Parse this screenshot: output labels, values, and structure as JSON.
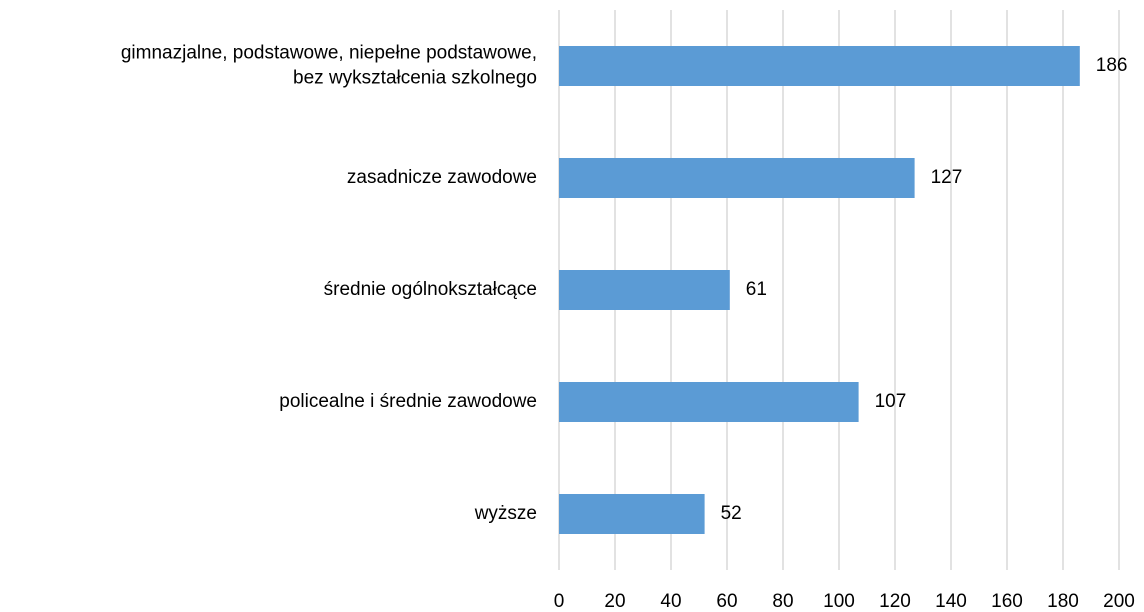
{
  "chart_data": {
    "type": "bar",
    "orientation": "horizontal",
    "categories": [
      "gimnazjalne, podstawowe, niepełne podstawowe,\nbez wykształcenia szkolnego",
      "zasadnicze zawodowe",
      "średnie ogólnokształcące",
      "policealne i średnie zawodowe",
      "wyższe"
    ],
    "values": [
      186,
      127,
      61,
      107,
      52
    ],
    "color": "#5b9bd5",
    "xlim": [
      0,
      200
    ],
    "xticks": [
      0,
      20,
      40,
      60,
      80,
      100,
      120,
      140,
      160,
      180,
      200
    ],
    "grid": true
  }
}
